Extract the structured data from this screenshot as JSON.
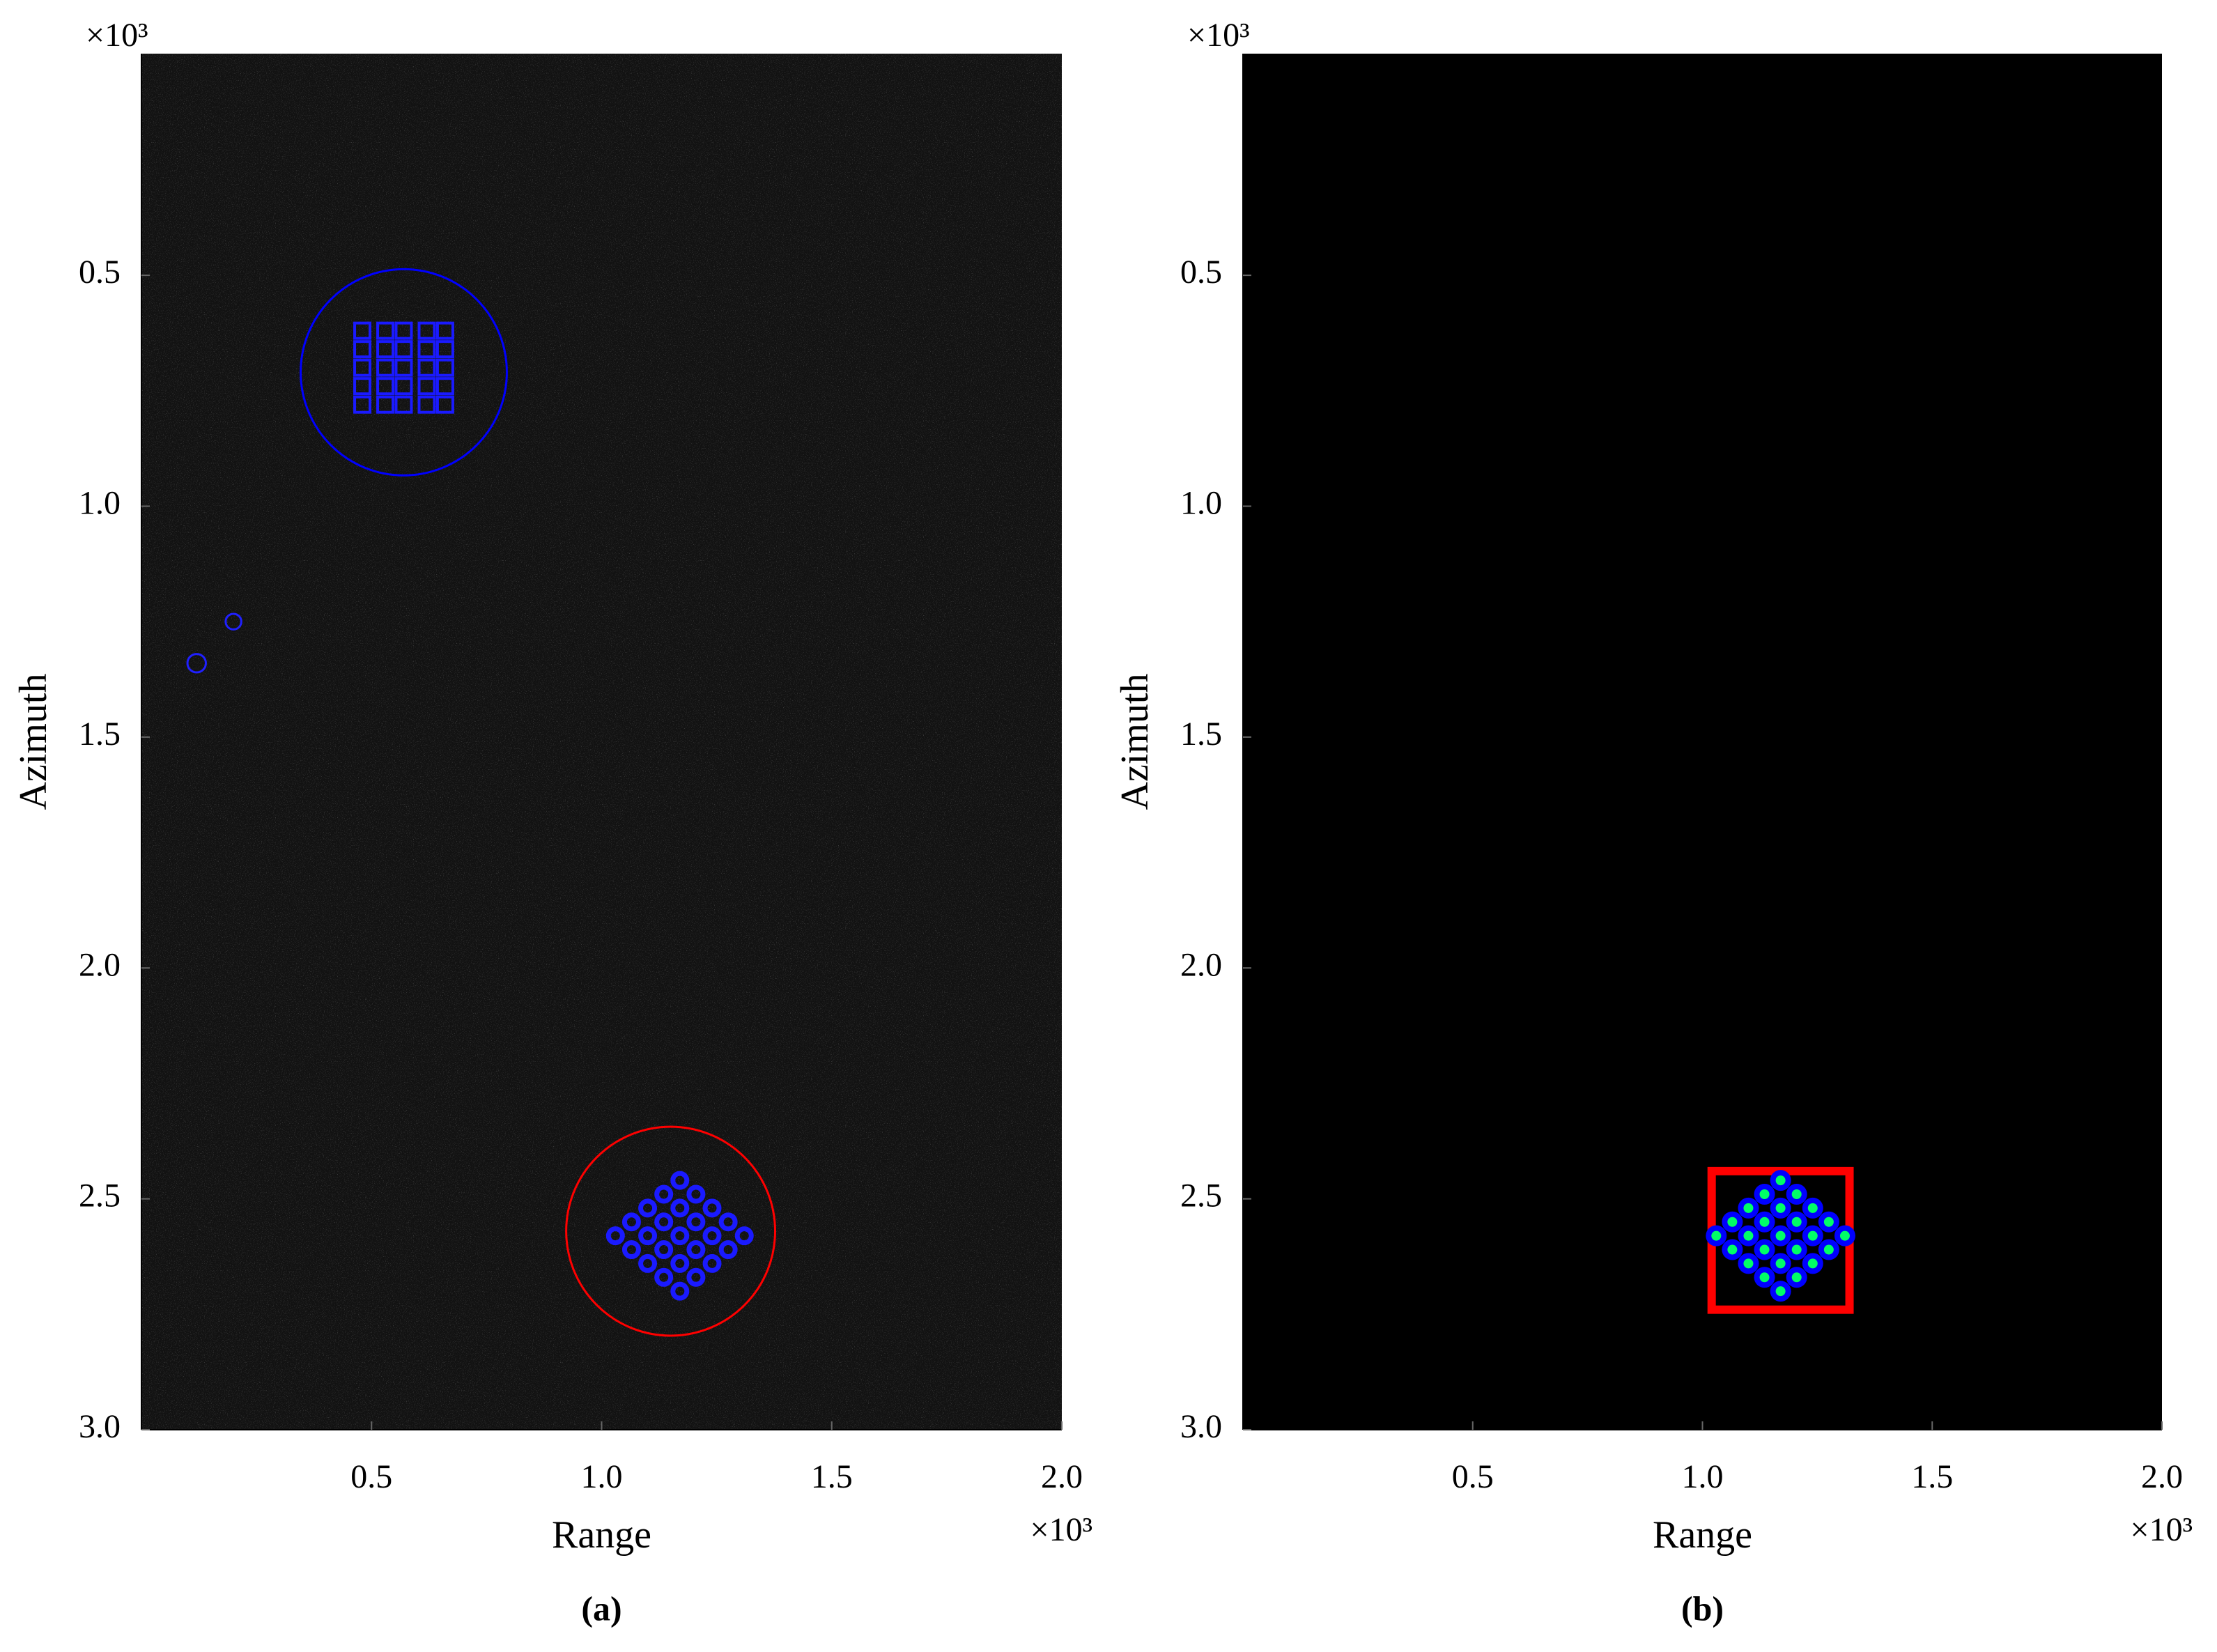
{
  "chart_data": [
    {
      "type": "image_scatter",
      "panel_label": "(a)",
      "xlabel": "Range",
      "ylabel": "Azimuth",
      "x_exponent": "×10³",
      "y_exponent": "×10³",
      "background": "#121212",
      "texture": true,
      "xlim": [
        0,
        2.0
      ],
      "ylim": [
        0.02,
        3.0
      ],
      "xticks": [
        0.5,
        {
          "value": 1,
          "label": "1.0"
        },
        1.5,
        {
          "value": 2,
          "label": "2.0"
        }
      ],
      "yticks": [
        0.5,
        {
          "value": 1,
          "label": "1.0"
        },
        1.5,
        {
          "value": 2,
          "label": "2.0"
        },
        2.5,
        {
          "value": 3,
          "label": "3.0"
        }
      ],
      "shapes": [
        {
          "shape": "circle",
          "color": "#0000ff",
          "cx": 0.57,
          "cy": 0.71,
          "r": 0.224
        },
        {
          "shape": "circle",
          "color": "#ff0000",
          "cx": 1.15,
          "cy": 2.57,
          "r": 0.227
        },
        {
          "shape": "circle",
          "color": "#2020ff",
          "cx": 0.12,
          "cy": 1.34,
          "r": 0.02
        },
        {
          "shape": "circle",
          "color": "#2020ff",
          "cx": 0.2,
          "cy": 1.25,
          "r": 0.017
        }
      ],
      "markers": [
        {
          "marker": "square",
          "color": "#1a1aff",
          "x": [
            0.48,
            0.53,
            0.57,
            0.62,
            0.66,
            0.48,
            0.53,
            0.57,
            0.62,
            0.66,
            0.48,
            0.53,
            0.57,
            0.62,
            0.66,
            0.48,
            0.53,
            0.57,
            0.62,
            0.66,
            0.48,
            0.53,
            0.57,
            0.62,
            0.66
          ],
          "y": [
            0.62,
            0.62,
            0.62,
            0.62,
            0.62,
            0.66,
            0.66,
            0.66,
            0.66,
            0.66,
            0.7,
            0.7,
            0.7,
            0.7,
            0.7,
            0.74,
            0.74,
            0.74,
            0.74,
            0.74,
            0.78,
            0.78,
            0.78,
            0.78,
            0.78
          ]
        },
        {
          "marker": "ring",
          "color": "#1a1aff",
          "x": [
            1.17,
            1.135,
            1.1,
            1.065,
            1.03,
            1.205,
            1.17,
            1.135,
            1.1,
            1.065,
            1.24,
            1.205,
            1.17,
            1.135,
            1.1,
            1.275,
            1.24,
            1.205,
            1.17,
            1.135,
            1.31,
            1.275,
            1.24,
            1.205,
            1.17
          ],
          "y": [
            2.46,
            2.49,
            2.52,
            2.55,
            2.58,
            2.49,
            2.52,
            2.55,
            2.58,
            2.61,
            2.52,
            2.55,
            2.58,
            2.61,
            2.64,
            2.55,
            2.58,
            2.61,
            2.64,
            2.67,
            2.58,
            2.61,
            2.64,
            2.67,
            2.7
          ]
        }
      ]
    },
    {
      "type": "image_scatter",
      "panel_label": "(b)",
      "xlabel": "Range",
      "ylabel": "Azimuth",
      "x_exponent": "×10³",
      "y_exponent": "×10³",
      "background": "#000000",
      "texture": false,
      "xlim": [
        0,
        2.0
      ],
      "ylim": [
        0.02,
        3.0
      ],
      "xticks": [
        0.5,
        {
          "value": 1,
          "label": "1.0"
        },
        1.5,
        {
          "value": 2,
          "label": "2.0"
        }
      ],
      "yticks": [
        0.5,
        {
          "value": 1,
          "label": "1.0"
        },
        1.5,
        {
          "value": 2,
          "label": "2.0"
        },
        2.5,
        {
          "value": 3,
          "label": "3.0"
        }
      ],
      "shapes": [
        {
          "shape": "rect",
          "color": "#ff0000",
          "x": [
            1.02,
            1.32
          ],
          "y": [
            2.44,
            2.74
          ]
        }
      ],
      "markers": [
        {
          "marker": "dot",
          "color": "#0000ff",
          "center_color": "#00ff66",
          "x": [
            1.17,
            1.135,
            1.1,
            1.065,
            1.03,
            1.205,
            1.17,
            1.135,
            1.1,
            1.065,
            1.24,
            1.205,
            1.17,
            1.135,
            1.1,
            1.275,
            1.24,
            1.205,
            1.17,
            1.135,
            1.31,
            1.275,
            1.24,
            1.205,
            1.17
          ],
          "y": [
            2.46,
            2.49,
            2.52,
            2.55,
            2.58,
            2.49,
            2.52,
            2.55,
            2.58,
            2.61,
            2.52,
            2.55,
            2.58,
            2.61,
            2.64,
            2.55,
            2.58,
            2.61,
            2.64,
            2.67,
            2.58,
            2.61,
            2.64,
            2.67,
            2.7
          ]
        }
      ]
    }
  ]
}
